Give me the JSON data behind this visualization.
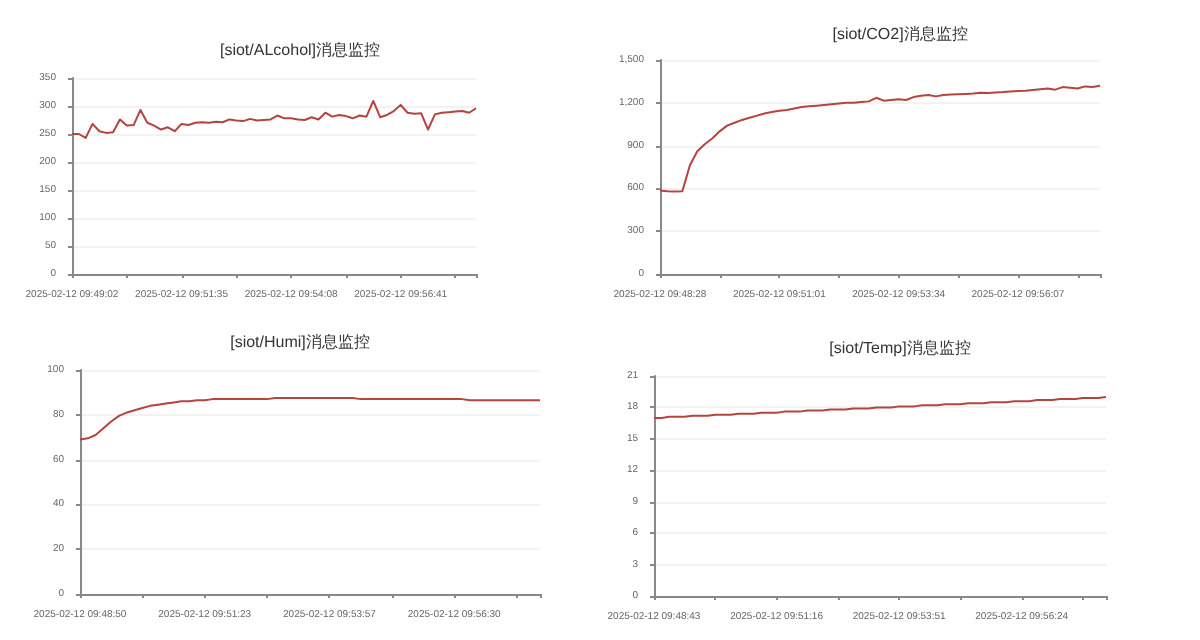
{
  "chart_data": [
    {
      "type": "line",
      "title": "[siot/ALcohol]消息监控",
      "categories": [
        "2025-02-12 09:49:02",
        null,
        null,
        null,
        null,
        null,
        null,
        null,
        null,
        null,
        null,
        null,
        null,
        null,
        null,
        null,
        "2025-02-12 09:51:35",
        null,
        null,
        null,
        null,
        null,
        null,
        null,
        null,
        null,
        null,
        null,
        null,
        null,
        null,
        null,
        "2025-02-12 09:54:08",
        null,
        null,
        null,
        null,
        null,
        null,
        null,
        null,
        null,
        null,
        null,
        null,
        null,
        null,
        null,
        "2025-02-12 09:56:41",
        null,
        null,
        null,
        null,
        null,
        null,
        null,
        null,
        null,
        null,
        null
      ],
      "series": [
        {
          "color": "#b5443f",
          "values": [
            250,
            250,
            243,
            268,
            255,
            252,
            253,
            276,
            265,
            266,
            293,
            270,
            265,
            258,
            262,
            255,
            268,
            266,
            270,
            271,
            270,
            272,
            271,
            276,
            274,
            273,
            277,
            274,
            275,
            276,
            283,
            278,
            278,
            276,
            275,
            280,
            276,
            288,
            281,
            284,
            282,
            278,
            283,
            281,
            309,
            280,
            284,
            291,
            302,
            288,
            286,
            287,
            258,
            285,
            288,
            289,
            290,
            291,
            288,
            296
          ]
        }
      ],
      "ylim": [
        0,
        350
      ],
      "yticks": [
        0,
        50,
        100,
        150,
        200,
        250,
        300,
        350
      ],
      "grid": "y",
      "marker": "none",
      "line_style": "solid"
    },
    {
      "type": "line",
      "title": "[siot/CO2]消息监控",
      "categories": [
        "2025-02-12 09:48:28",
        null,
        null,
        null,
        null,
        null,
        null,
        null,
        null,
        null,
        null,
        null,
        null,
        null,
        null,
        null,
        "2025-02-12 09:51:01",
        null,
        null,
        null,
        null,
        null,
        null,
        null,
        null,
        null,
        null,
        null,
        null,
        null,
        null,
        null,
        "2025-02-12 09:53:34",
        null,
        null,
        null,
        null,
        null,
        null,
        null,
        null,
        null,
        null,
        null,
        null,
        null,
        null,
        null,
        "2025-02-12 09:56:07",
        null,
        null,
        null,
        null,
        null,
        null,
        null,
        null,
        null,
        null,
        null
      ],
      "series": [
        {
          "color": "#b5443f",
          "values": [
            585,
            580,
            578,
            580,
            760,
            860,
            910,
            950,
            1000,
            1040,
            1060,
            1080,
            1095,
            1110,
            1125,
            1135,
            1145,
            1150,
            1160,
            1170,
            1175,
            1180,
            1185,
            1190,
            1195,
            1200,
            1200,
            1205,
            1210,
            1235,
            1215,
            1220,
            1225,
            1220,
            1240,
            1250,
            1255,
            1245,
            1255,
            1258,
            1260,
            1262,
            1265,
            1270,
            1268,
            1272,
            1275,
            1280,
            1282,
            1285,
            1290,
            1295,
            1300,
            1292,
            1310,
            1305,
            1300,
            1315,
            1310,
            1320
          ]
        }
      ],
      "ylim": [
        0,
        1500
      ],
      "yticks": [
        0,
        300,
        600,
        900,
        {
          "value": 1200,
          "label": "1,200"
        },
        {
          "value": 1500,
          "label": "1,500"
        }
      ],
      "grid": "y",
      "marker": "none",
      "line_style": "solid"
    },
    {
      "type": "line",
      "title": "[siot/Humi]消息监控",
      "categories": [
        "2025-02-12 09:48:50",
        null,
        null,
        null,
        null,
        null,
        null,
        null,
        null,
        null,
        null,
        null,
        null,
        null,
        null,
        null,
        "2025-02-12 09:51:23",
        null,
        null,
        null,
        null,
        null,
        null,
        null,
        null,
        null,
        null,
        null,
        null,
        null,
        null,
        null,
        "2025-02-12 09:53:57",
        null,
        null,
        null,
        null,
        null,
        null,
        null,
        null,
        null,
        null,
        null,
        null,
        null,
        null,
        null,
        "2025-02-12 09:56:30",
        null,
        null,
        null,
        null,
        null,
        null,
        null,
        null,
        null,
        null,
        null
      ],
      "series": [
        {
          "color": "#b5443f",
          "values": [
            69,
            69.5,
            71,
            74,
            77,
            79.5,
            81,
            82,
            83,
            84,
            84.5,
            85,
            85.5,
            86,
            86,
            86.5,
            86.5,
            87,
            87,
            87,
            87,
            87,
            87,
            87,
            87,
            87.5,
            87.5,
            87.5,
            87.5,
            87.5,
            87.5,
            87.5,
            87.5,
            87.5,
            87.5,
            87.5,
            87,
            87,
            87,
            87,
            87,
            87,
            87,
            87,
            87,
            87,
            87,
            87,
            87,
            87,
            86.5,
            86.5,
            86.5,
            86.5,
            86.5,
            86.5,
            86.5,
            86.5,
            86.5,
            86.5
          ]
        }
      ],
      "ylim": [
        0,
        100
      ],
      "yticks": [
        0,
        20,
        40,
        60,
        80,
        100
      ],
      "grid": "y",
      "marker": "none",
      "line_style": "solid"
    },
    {
      "type": "line",
      "title": "[siot/Temp]消息监控",
      "categories": [
        "2025-02-12 09:48:43",
        null,
        null,
        null,
        null,
        null,
        null,
        null,
        null,
        null,
        null,
        null,
        null,
        null,
        null,
        null,
        "2025-02-12 09:51:16",
        null,
        null,
        null,
        null,
        null,
        null,
        null,
        null,
        null,
        null,
        null,
        null,
        null,
        null,
        null,
        "2025-02-12 09:53:51",
        null,
        null,
        null,
        null,
        null,
        null,
        null,
        null,
        null,
        null,
        null,
        null,
        null,
        null,
        null,
        "2025-02-12 09:56:24",
        null,
        null,
        null,
        null,
        null,
        null,
        null,
        null,
        null,
        null,
        null
      ],
      "series": [
        {
          "color": "#b5443f",
          "values": [
            17.0,
            17.0,
            17.1,
            17.1,
            17.1,
            17.2,
            17.2,
            17.2,
            17.3,
            17.3,
            17.3,
            17.4,
            17.4,
            17.4,
            17.5,
            17.5,
            17.5,
            17.6,
            17.6,
            17.6,
            17.7,
            17.7,
            17.7,
            17.8,
            17.8,
            17.8,
            17.9,
            17.9,
            17.9,
            18.0,
            18.0,
            18.0,
            18.1,
            18.1,
            18.1,
            18.2,
            18.2,
            18.2,
            18.3,
            18.3,
            18.3,
            18.4,
            18.4,
            18.4,
            18.5,
            18.5,
            18.5,
            18.6,
            18.6,
            18.6,
            18.7,
            18.7,
            18.7,
            18.8,
            18.8,
            18.8,
            18.9,
            18.9,
            18.9,
            19.0
          ]
        }
      ],
      "ylim": [
        0,
        21
      ],
      "yticks": [
        0,
        3,
        6,
        9,
        12,
        15,
        18,
        21
      ],
      "grid": "y",
      "marker": "none",
      "line_style": "solid"
    }
  ]
}
